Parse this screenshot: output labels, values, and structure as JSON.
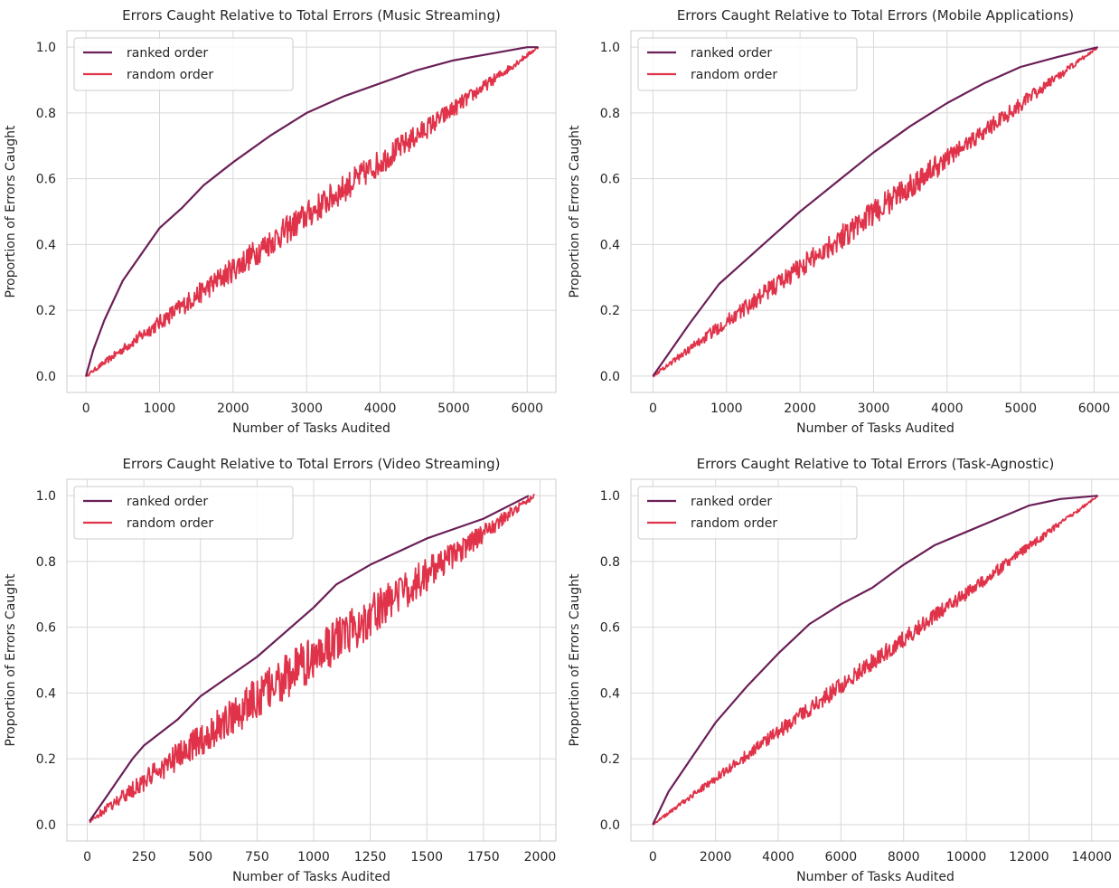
{
  "colors": {
    "ranked": "#6b1f57",
    "random": "#e0334a",
    "grid": "#d8d8d8",
    "text": "#262626"
  },
  "chart_data": [
    {
      "type": "line",
      "title": "Errors Caught Relative to Total Errors (Music Streaming)",
      "xlabel": "Number of Tasks Audited",
      "ylabel": "Proportion of Errors Caught",
      "xlim": [
        -260,
        6390
      ],
      "ylim": [
        -0.05,
        1.05
      ],
      "xticks": [
        0,
        1000,
        2000,
        3000,
        4000,
        5000,
        6000
      ],
      "yticks": [
        0.0,
        0.2,
        0.4,
        0.6,
        0.8,
        1.0
      ],
      "grid": true,
      "legend_position": "top-left",
      "series": [
        {
          "name": "ranked order",
          "color_key": "ranked",
          "points": [
            [
              0,
              0
            ],
            [
              100,
              0.08
            ],
            [
              250,
              0.17
            ],
            [
              500,
              0.29
            ],
            [
              750,
              0.37
            ],
            [
              1000,
              0.45
            ],
            [
              1300,
              0.51
            ],
            [
              1600,
              0.58
            ],
            [
              2000,
              0.65
            ],
            [
              2500,
              0.73
            ],
            [
              3000,
              0.8
            ],
            [
              3500,
              0.85
            ],
            [
              4000,
              0.89
            ],
            [
              4500,
              0.93
            ],
            [
              5000,
              0.96
            ],
            [
              5500,
              0.98
            ],
            [
              6000,
              1.0
            ],
            [
              6150,
              1.0
            ]
          ]
        },
        {
          "name": "random order",
          "color_key": "random",
          "points": [
            [
              0,
              0
            ],
            [
              6150,
              1.0
            ]
          ],
          "noise": 0.025
        }
      ]
    },
    {
      "type": "line",
      "title": "Errors Caught Relative to Total Errors (Mobile Applications)",
      "xlabel": "Number of Tasks Audited",
      "ylabel": "Proportion of Errors Caught",
      "xlim": [
        -300,
        6350
      ],
      "ylim": [
        -0.05,
        1.05
      ],
      "xticks": [
        0,
        1000,
        2000,
        3000,
        4000,
        5000,
        6000
      ],
      "yticks": [
        0.0,
        0.2,
        0.4,
        0.6,
        0.8,
        1.0
      ],
      "grid": true,
      "legend_position": "top-left",
      "series": [
        {
          "name": "ranked order",
          "color_key": "ranked",
          "points": [
            [
              0,
              0
            ],
            [
              250,
              0.08
            ],
            [
              500,
              0.16
            ],
            [
              900,
              0.28
            ],
            [
              1200,
              0.34
            ],
            [
              1500,
              0.4
            ],
            [
              2000,
              0.5
            ],
            [
              2500,
              0.59
            ],
            [
              3000,
              0.68
            ],
            [
              3500,
              0.76
            ],
            [
              4000,
              0.83
            ],
            [
              4500,
              0.89
            ],
            [
              5000,
              0.94
            ],
            [
              5500,
              0.97
            ],
            [
              6050,
              1.0
            ]
          ]
        },
        {
          "name": "random order",
          "color_key": "random",
          "points": [
            [
              0,
              0
            ],
            [
              6050,
              1.0
            ]
          ],
          "noise": 0.022
        }
      ]
    },
    {
      "type": "line",
      "title": "Errors Caught Relative to Total Errors (Video Streaming)",
      "xlabel": "Number of Tasks Audited",
      "ylabel": "Proportion of Errors Caught",
      "xlim": [
        -90,
        2070
      ],
      "ylim": [
        -0.05,
        1.05
      ],
      "xticks": [
        0,
        250,
        500,
        750,
        1000,
        1250,
        1500,
        1750,
        2000
      ],
      "yticks": [
        0.0,
        0.2,
        0.4,
        0.6,
        0.8,
        1.0
      ],
      "grid": true,
      "legend_position": "top-left",
      "series": [
        {
          "name": "ranked order",
          "color_key": "ranked",
          "points": [
            [
              10,
              0.01
            ],
            [
              100,
              0.1
            ],
            [
              200,
              0.2
            ],
            [
              250,
              0.24
            ],
            [
              400,
              0.32
            ],
            [
              500,
              0.39
            ],
            [
              750,
              0.51
            ],
            [
              1000,
              0.66
            ],
            [
              1100,
              0.73
            ],
            [
              1250,
              0.79
            ],
            [
              1500,
              0.87
            ],
            [
              1750,
              0.93
            ],
            [
              1950,
              1.0
            ]
          ]
        },
        {
          "name": "random order",
          "color_key": "random",
          "points": [
            [
              10,
              0.01
            ],
            [
              1975,
              1.0
            ]
          ],
          "noise": 0.04
        }
      ]
    },
    {
      "type": "line",
      "title": "Errors Caught Relative to Total Errors (Task-Agnostic)",
      "xlabel": "Number of Tasks Audited",
      "ylabel": "Proportion of Errors Caught",
      "xlim": [
        -700,
        14900
      ],
      "ylim": [
        -0.05,
        1.05
      ],
      "xticks": [
        0,
        2000,
        4000,
        6000,
        8000,
        10000,
        12000,
        14000
      ],
      "yticks": [
        0.0,
        0.2,
        0.4,
        0.6,
        0.8,
        1.0
      ],
      "grid": true,
      "legend_position": "top-left",
      "series": [
        {
          "name": "ranked order",
          "color_key": "ranked",
          "points": [
            [
              0,
              0
            ],
            [
              500,
              0.1
            ],
            [
              1000,
              0.17
            ],
            [
              2000,
              0.31
            ],
            [
              3000,
              0.42
            ],
            [
              4000,
              0.52
            ],
            [
              5000,
              0.61
            ],
            [
              6000,
              0.67
            ],
            [
              7000,
              0.72
            ],
            [
              8000,
              0.79
            ],
            [
              9000,
              0.85
            ],
            [
              10000,
              0.89
            ],
            [
              11000,
              0.93
            ],
            [
              12000,
              0.97
            ],
            [
              13000,
              0.99
            ],
            [
              14200,
              1.0
            ]
          ]
        },
        {
          "name": "random order",
          "color_key": "random",
          "points": [
            [
              0,
              0
            ],
            [
              14200,
              1.0
            ]
          ],
          "noise": 0.015
        }
      ]
    }
  ]
}
